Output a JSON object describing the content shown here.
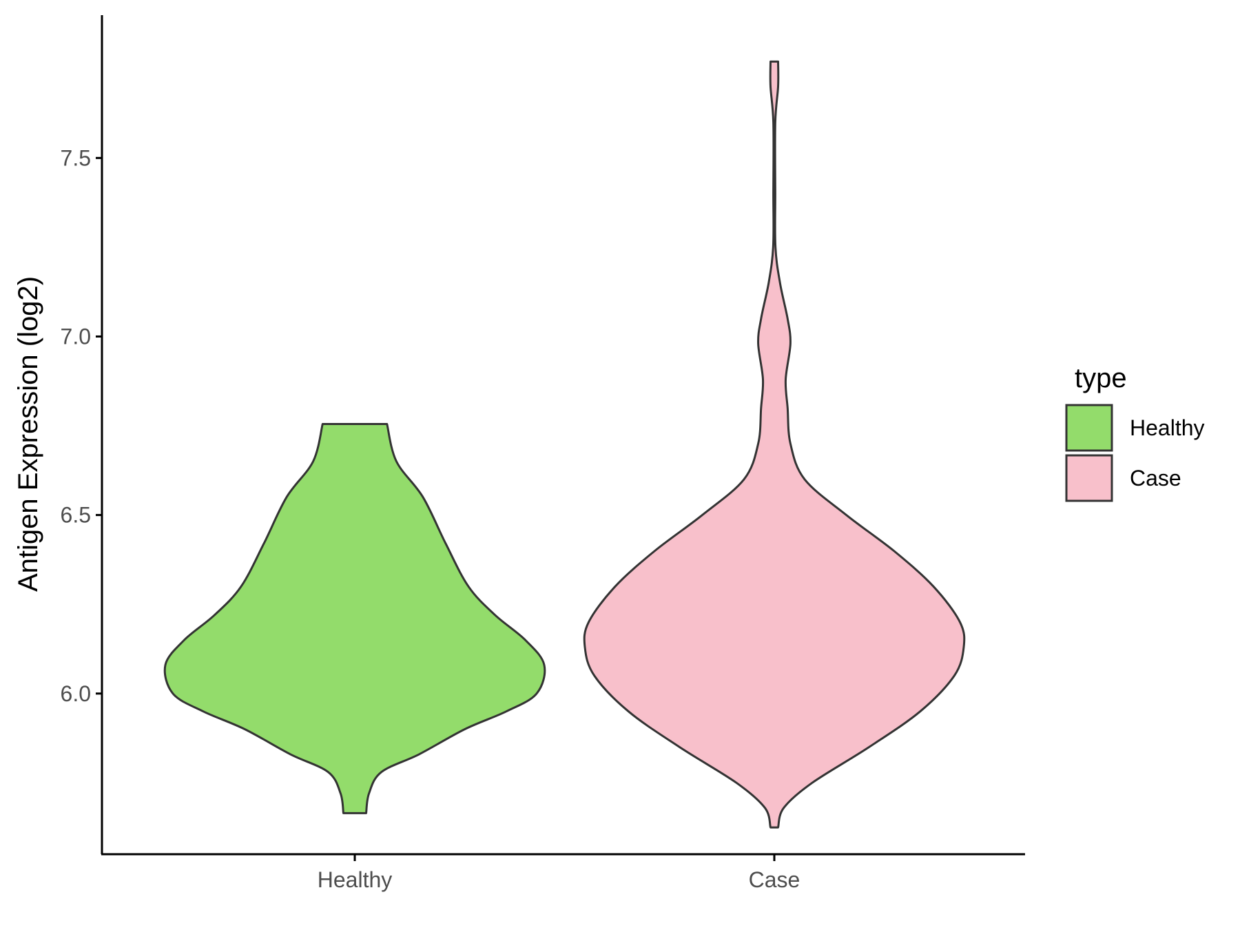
{
  "chart_data": {
    "type": "violin",
    "ylabel": "Antigen Expression (log2)",
    "xlabel": "",
    "categories": [
      "Healthy",
      "Case"
    ],
    "y_ticks": [
      "6.0",
      "6.5",
      "7.0",
      "7.5"
    ],
    "y_tick_values": [
      6.0,
      6.5,
      7.0,
      7.5
    ],
    "ylim": [
      5.55,
      7.9
    ],
    "grid": false,
    "legend": {
      "title": "type",
      "position": "right",
      "entries": [
        "Healthy",
        "Case"
      ]
    },
    "colors": {
      "Healthy": "#93dc6b",
      "Case": "#f8c0cb",
      "outline": "#333333",
      "axis": "#000000"
    },
    "series": [
      {
        "name": "Healthy",
        "y_min": 5.665,
        "y_max": 6.755,
        "density_profile": [
          [
            5.665,
            0.06
          ],
          [
            5.72,
            0.075
          ],
          [
            5.78,
            0.14
          ],
          [
            5.83,
            0.34
          ],
          [
            5.9,
            0.58
          ],
          [
            5.95,
            0.8
          ],
          [
            6.0,
            0.96
          ],
          [
            6.08,
            1.0
          ],
          [
            6.15,
            0.9
          ],
          [
            6.22,
            0.74
          ],
          [
            6.3,
            0.6
          ],
          [
            6.42,
            0.48
          ],
          [
            6.55,
            0.36
          ],
          [
            6.65,
            0.22
          ],
          [
            6.755,
            0.17
          ]
        ]
      },
      {
        "name": "Case",
        "y_min": 5.625,
        "y_max": 7.77,
        "density_profile": [
          [
            5.625,
            0.02
          ],
          [
            5.68,
            0.05
          ],
          [
            5.75,
            0.2
          ],
          [
            5.85,
            0.5
          ],
          [
            5.95,
            0.77
          ],
          [
            6.05,
            0.95
          ],
          [
            6.13,
            1.0
          ],
          [
            6.2,
            0.98
          ],
          [
            6.3,
            0.84
          ],
          [
            6.4,
            0.63
          ],
          [
            6.5,
            0.38
          ],
          [
            6.6,
            0.16
          ],
          [
            6.7,
            0.085
          ],
          [
            6.8,
            0.07
          ],
          [
            6.88,
            0.06
          ],
          [
            6.98,
            0.085
          ],
          [
            7.05,
            0.07
          ],
          [
            7.15,
            0.03
          ],
          [
            7.25,
            0.006
          ],
          [
            7.4,
            0.005
          ],
          [
            7.6,
            0.005
          ],
          [
            7.7,
            0.02
          ],
          [
            7.77,
            0.02
          ]
        ]
      }
    ]
  }
}
